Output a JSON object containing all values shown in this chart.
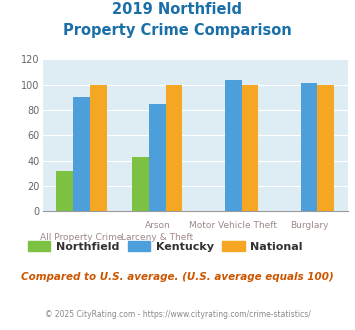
{
  "title_line1": "2019 Northfield",
  "title_line2": "Property Crime Comparison",
  "cat_labels_top": [
    "",
    "Arson",
    "Motor Vehicle Theft",
    "Burglary"
  ],
  "cat_labels_bottom": [
    "All Property Crime",
    "Larceny & Theft",
    "",
    ""
  ],
  "northfield": [
    32,
    43,
    0,
    0
  ],
  "kentucky": [
    90,
    85,
    104,
    101
  ],
  "national": [
    100,
    100,
    100,
    100
  ],
  "northfield_color": "#7dc142",
  "kentucky_color": "#4d9fdb",
  "national_color": "#f5a623",
  "ylim": [
    0,
    120
  ],
  "yticks": [
    0,
    20,
    40,
    60,
    80,
    100,
    120
  ],
  "plot_bg": "#deedf4",
  "title_color": "#1a6fa8",
  "footer_note": "Compared to U.S. average. (U.S. average equals 100)",
  "copyright": "© 2025 CityRating.com - https://www.cityrating.com/crime-statistics/",
  "legend_labels": [
    "Northfield",
    "Kentucky",
    "National"
  ],
  "bar_width": 0.22,
  "grid_color": "#ffffff",
  "tick_label_color": "#a08888"
}
